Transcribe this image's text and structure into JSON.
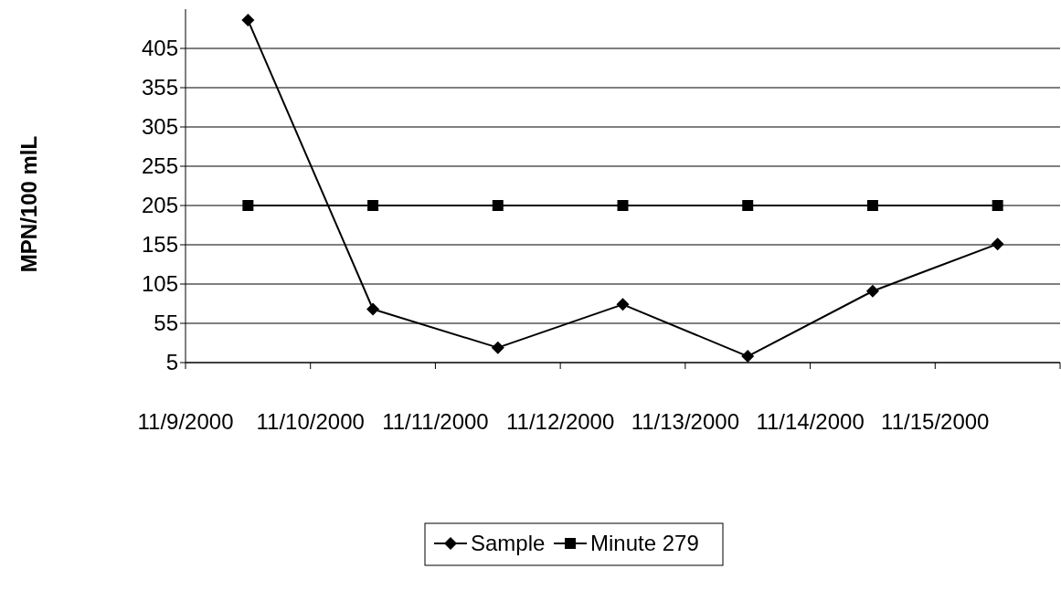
{
  "chart_data": {
    "type": "line",
    "ylabel": "MPN/100 mlL",
    "x": [
      "2000-11-09T12:00",
      "2000-11-10T12:00",
      "2000-11-11T12:00",
      "2000-11-12T12:00",
      "2000-11-13T12:00",
      "2000-11-14T12:00",
      "2000-11-15T12:00"
    ],
    "xlim": [
      "2000-11-09",
      "2000-11-16"
    ],
    "xticks": [
      {
        "value": "2000-11-09",
        "label": "11/9/2000"
      },
      {
        "value": "2000-11-10",
        "label": "11/10/2000"
      },
      {
        "value": "2000-11-11",
        "label": "11/11/2000"
      },
      {
        "value": "2000-11-12",
        "label": "11/12/2000"
      },
      {
        "value": "2000-11-13",
        "label": "11/13/2000"
      },
      {
        "value": "2000-11-14",
        "label": "11/14/2000"
      },
      {
        "value": "2000-11-15",
        "label": "11/15/2000"
      },
      {
        "value": "2000-11-16",
        "label": null
      }
    ],
    "series": [
      {
        "name": "Sample",
        "color": "#000000",
        "values": [
          441,
          73,
          24,
          79,
          13,
          96,
          156
        ],
        "marker": "diamond"
      },
      {
        "name": "Minute 279",
        "color": "#000000",
        "values": [
          205,
          205,
          205,
          205,
          205,
          205,
          205
        ],
        "marker": "square"
      }
    ],
    "ylim": [
      5,
      455
    ],
    "yticks": [
      5,
      55,
      105,
      155,
      205,
      255,
      305,
      355,
      405
    ],
    "grid": "y",
    "legend": "bottom"
  }
}
